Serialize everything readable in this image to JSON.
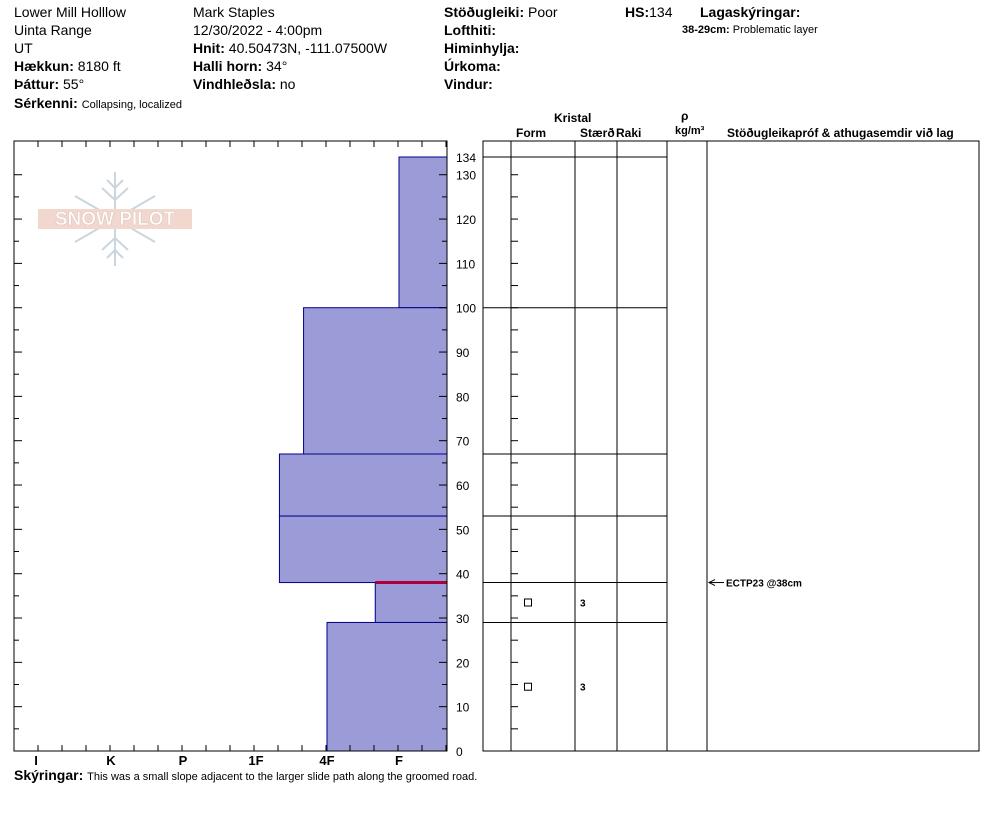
{
  "header": {
    "location": "Lower Mill Holllow",
    "range": "Uinta Range",
    "state": "UT",
    "elevation_label": "Hækkun:",
    "elevation_value": "8180 ft",
    "aspect_label": "Þáttur:",
    "aspect_value": "55°",
    "features_label": "Sérkenni:",
    "features_value": "Collapsing, localized",
    "observer": "Mark Staples",
    "datetime": "12/30/2022 - 4:00pm",
    "coords_label": "Hnit:",
    "coords_value": "40.50473N, -111.07500W",
    "slope_label": "Halli horn:",
    "slope_value": "34°",
    "wind_loading_label": "Vindhleðsla:",
    "wind_loading_value": "no",
    "stability_label": "Stöðugleiki:",
    "stability_value": "Poor",
    "air_temp_label": "Lofthiti:",
    "sky_label": "Himinhylja:",
    "precip_label": "Úrkoma:",
    "wind_label": "Vindur:",
    "hs_label": "HS:",
    "hs_value": "134",
    "layer_notes_label": "Lagaskýringar:",
    "layer_notes_range": "38-29cm:",
    "layer_notes_text": "Problematic layer"
  },
  "logo": {
    "text": "SNOW PILOT"
  },
  "table_headers": {
    "crystal": "Kristal",
    "form": "Form",
    "size": "Stærð",
    "moisture": "Raki",
    "rho": "ρ",
    "density_unit": "kg/m³",
    "tests": "Stöðugleikapróf & athugasemdir við lag"
  },
  "footer": {
    "comments_label": "Skýringar:",
    "comments_text": "This was a small slope adjacent to the larger slide path along the groomed road."
  },
  "chart_data": {
    "type": "bar",
    "title": "",
    "ylabel": "",
    "ylim": [
      0,
      134
    ],
    "y_ticks": [
      0,
      10,
      20,
      30,
      40,
      50,
      60,
      70,
      80,
      90,
      100,
      110,
      120,
      130
    ],
    "hs_tick": 134,
    "hardness_scale": [
      "F",
      "4F",
      "1F",
      "P",
      "K",
      "I"
    ],
    "hardness_axis_labels": [
      "I",
      "K",
      "P",
      "1F",
      "4F",
      "F"
    ],
    "layers": [
      {
        "top": 134,
        "bottom": 100,
        "hardness": "F"
      },
      {
        "top": 100,
        "bottom": 67,
        "hardness": "4F+"
      },
      {
        "top": 67,
        "bottom": 53,
        "hardness": "1F-"
      },
      {
        "top": 53,
        "bottom": 38,
        "hardness": "1F-"
      },
      {
        "top": 38,
        "bottom": 29,
        "hardness": "F+"
      },
      {
        "top": 29,
        "bottom": 0,
        "hardness": "4F"
      }
    ],
    "hardness_levels": {
      "F": 1.0,
      "F+": 1.33,
      "4F": 2.0,
      "4F+": 2.33,
      "1F-": 2.67,
      "1F": 3.0,
      "P": 4.0,
      "K": 5.0,
      "I": 6.0
    },
    "grains": [
      {
        "depth": 33.5,
        "size": "3"
      },
      {
        "depth": 14.5,
        "size": "3"
      }
    ],
    "test_results": [
      {
        "depth": 38,
        "label": "ECTP23 @38cm"
      }
    ],
    "highlight_layer_depth": 38,
    "colors": {
      "fill": "#9b9bd7",
      "stroke": "#00008b",
      "highlight": "#b0003a"
    }
  }
}
